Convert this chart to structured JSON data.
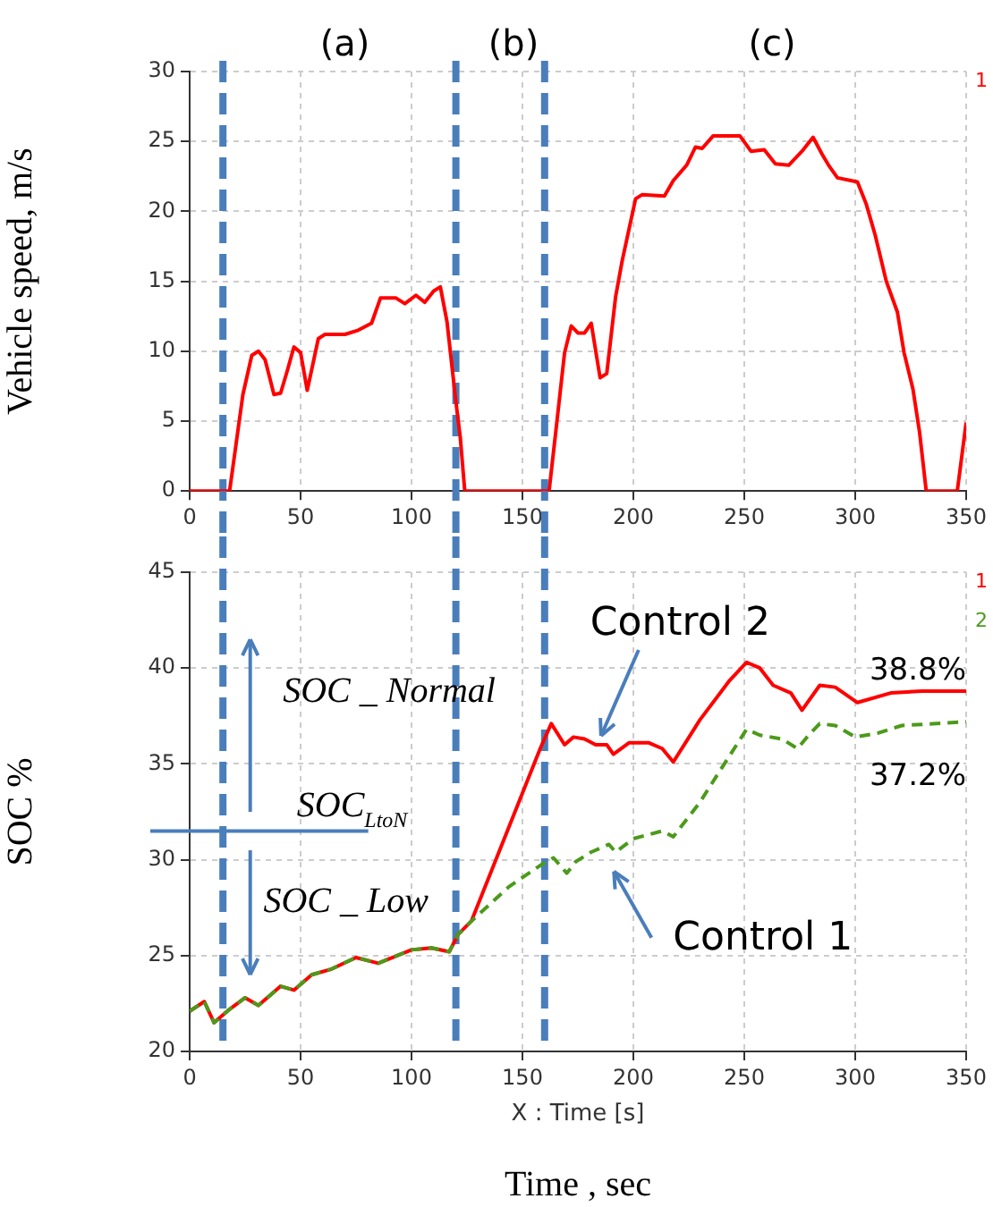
{
  "chart_data": [
    {
      "type": "line",
      "ylabel": "Vehicle speed, m/s",
      "xlim": [
        0,
        350
      ],
      "xticks": [
        0,
        50,
        100,
        150,
        200,
        250,
        300,
        350
      ],
      "ylim": [
        0,
        30
      ],
      "yticks": [
        0,
        5,
        10,
        15,
        20,
        25,
        30
      ],
      "grid": true,
      "legend": false,
      "marker": "none",
      "annotations": [
        "(a)",
        "(b)",
        "(c)"
      ],
      "ref_lines": [
        {
          "axis": "x",
          "value": 15,
          "color": "#4a7ebb",
          "line_style": "dashed"
        },
        {
          "axis": "x",
          "value": 120,
          "color": "#4a7ebb",
          "line_style": "dashed"
        },
        {
          "axis": "x",
          "value": 160,
          "color": "#4a7ebb",
          "line_style": "dashed"
        }
      ],
      "series": [
        {
          "name": "1",
          "color": "#ff0000",
          "line_style": "solid",
          "x": [
            0,
            18,
            24,
            28,
            31,
            34,
            38,
            41,
            44,
            47,
            50,
            53,
            58,
            61,
            70,
            76,
            82,
            86,
            93,
            97,
            102,
            106,
            110,
            113,
            116,
            120,
            122,
            124,
            162,
            165,
            169,
            172,
            175,
            178,
            181,
            185,
            188,
            192,
            195,
            201,
            204,
            214,
            218,
            224,
            228,
            231,
            236,
            248,
            253,
            259,
            264,
            270,
            276,
            281,
            285,
            288,
            292,
            301,
            305,
            309,
            314,
            319,
            322,
            326,
            329,
            332,
            346,
            350
          ],
          "values": [
            0,
            0,
            6.9,
            9.7,
            10,
            9.4,
            6.9,
            7,
            8.6,
            10.3,
            9.9,
            7.2,
            10.9,
            11.2,
            11.2,
            11.5,
            12,
            13.8,
            13.8,
            13.4,
            14,
            13.5,
            14.3,
            14.6,
            12.1,
            6.4,
            3.8,
            0,
            0,
            4.2,
            9.9,
            11.8,
            11.3,
            11.3,
            12,
            8.1,
            8.4,
            13.9,
            16.5,
            20.9,
            21.2,
            21.1,
            22.2,
            23.3,
            24.6,
            24.5,
            25.4,
            25.4,
            24.3,
            24.4,
            23.4,
            23.3,
            24.3,
            25.3,
            24.1,
            23.3,
            22.4,
            22.1,
            20.5,
            18.3,
            15,
            12.8,
            9.9,
            7.3,
            4.2,
            0,
            0,
            4.9
          ]
        }
      ]
    },
    {
      "type": "line",
      "xlabel": "X : Time [s]",
      "ylabel": "SOC %",
      "xlim": [
        0,
        350
      ],
      "xticks": [
        0,
        50,
        100,
        150,
        200,
        250,
        300,
        350
      ],
      "ylim": [
        20,
        45
      ],
      "yticks": [
        20,
        25,
        30,
        35,
        40,
        45
      ],
      "grid": true,
      "legend": false,
      "marker": "none",
      "annotations": [
        "SOC _ Normal",
        "SOC _ Low",
        {
          "text": "Control 2",
          "x": 183,
          "y": 36
        },
        {
          "text": "Control 1",
          "x": 188,
          "y": 30.6
        },
        {
          "text": "38.8%",
          "x": 350,
          "y": 38.8
        },
        {
          "text": "37.2%",
          "x": 350,
          "y": 37.2
        },
        "Time , sec"
      ],
      "ref_lines": [
        {
          "axis": "x",
          "value": 15,
          "color": "#4a7ebb",
          "line_style": "dashed"
        },
        {
          "axis": "x",
          "value": 120,
          "color": "#4a7ebb",
          "line_style": "dashed"
        },
        {
          "axis": "x",
          "value": 160,
          "color": "#4a7ebb",
          "line_style": "dashed"
        },
        {
          "axis": "y",
          "value": 31.5,
          "label": "SOC$_{LtoN}$",
          "color": "#4a7ebb",
          "line_style": "solid"
        }
      ],
      "series": [
        {
          "name": "1",
          "color": "#ff0000",
          "line_style": "solid",
          "x": [
            0,
            6.6,
            11,
            18,
            25,
            31,
            41,
            47,
            55,
            64,
            75,
            85,
            100,
            109,
            117,
            121,
            127,
            158,
            163,
            169,
            173,
            178,
            183,
            188,
            191,
            198,
            207,
            213,
            218,
            230,
            243,
            251,
            257,
            263,
            271,
            276,
            284,
            291,
            301,
            316,
            330,
            350
          ],
          "values": [
            22.1,
            22.6,
            21.5,
            22.2,
            22.8,
            22.4,
            23.4,
            23.2,
            24,
            24.3,
            24.9,
            24.6,
            25.3,
            25.4,
            25.2,
            26.1,
            26.8,
            35.8,
            37.1,
            36,
            36.4,
            36.3,
            36,
            36,
            35.5,
            36.1,
            36.1,
            35.8,
            35.1,
            37.3,
            39.3,
            40.3,
            40,
            39.1,
            38.7,
            37.8,
            39.1,
            39,
            38.2,
            38.7,
            38.8,
            38.8
          ]
        },
        {
          "name": "2",
          "color": "#4c9a1a",
          "line_style": "dashed",
          "x": [
            0,
            6.6,
            11,
            18,
            25,
            31,
            41,
            47,
            55,
            64,
            75,
            85,
            100,
            109,
            117,
            121,
            127,
            144,
            158,
            164,
            170,
            174,
            181,
            189,
            192,
            200,
            213,
            218,
            230,
            241,
            251,
            257,
            267,
            274,
            279,
            284,
            291,
            300,
            310,
            321,
            350
          ],
          "values": [
            22.1,
            22.6,
            21.5,
            22.2,
            22.8,
            22.4,
            23.4,
            23.2,
            24,
            24.3,
            24.9,
            24.6,
            25.3,
            25.4,
            25.2,
            26.1,
            26.8,
            28.6,
            29.7,
            30.1,
            29.3,
            29.9,
            30.4,
            30.8,
            30.4,
            31.1,
            31.5,
            31.2,
            33,
            35,
            36.8,
            36.5,
            36.3,
            35.8,
            36.5,
            37.1,
            37,
            36.4,
            36.6,
            37,
            37.2
          ]
        }
      ]
    }
  ]
}
